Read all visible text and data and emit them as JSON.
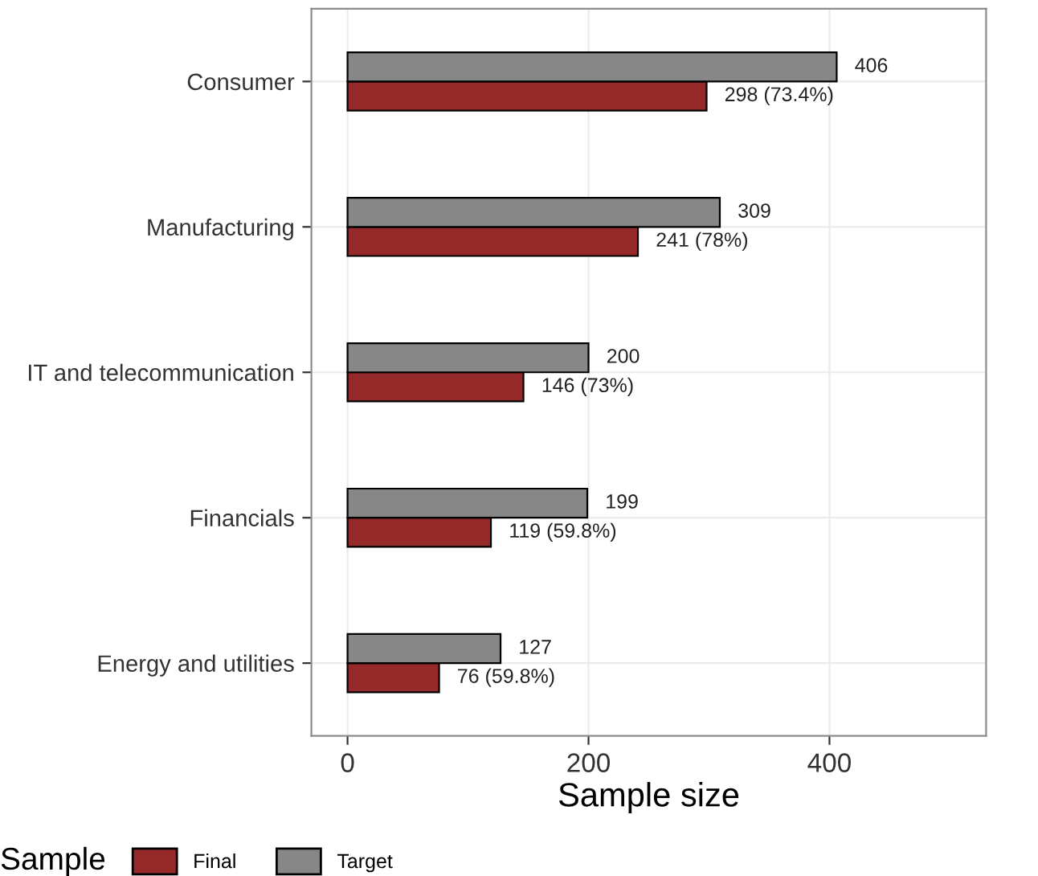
{
  "chart_data": {
    "type": "bar",
    "orientation": "horizontal",
    "xlabel": "Sample size",
    "legend_title": "Sample",
    "legend": "bottom",
    "categories": [
      "Consumer",
      "Manufacturing",
      "IT and telecommunication",
      "Financials",
      "Energy and utilities"
    ],
    "series": [
      {
        "name": "Final",
        "color": "#962a2a",
        "values": [
          298,
          241,
          146,
          119,
          76
        ],
        "value_labels": [
          "298 (73.4%)",
          "241 (78%)",
          "146 (73%)",
          "119 (59.8%)",
          "76 (59.8%)"
        ]
      },
      {
        "name": "Target",
        "color": "#878787",
        "values": [
          406,
          309,
          200,
          199,
          127
        ],
        "value_labels": [
          "406",
          "309",
          "200",
          "199",
          "127"
        ]
      }
    ],
    "xlim": [
      -30,
      530
    ],
    "xticks": [
      0,
      200,
      400
    ],
    "grid": true
  }
}
